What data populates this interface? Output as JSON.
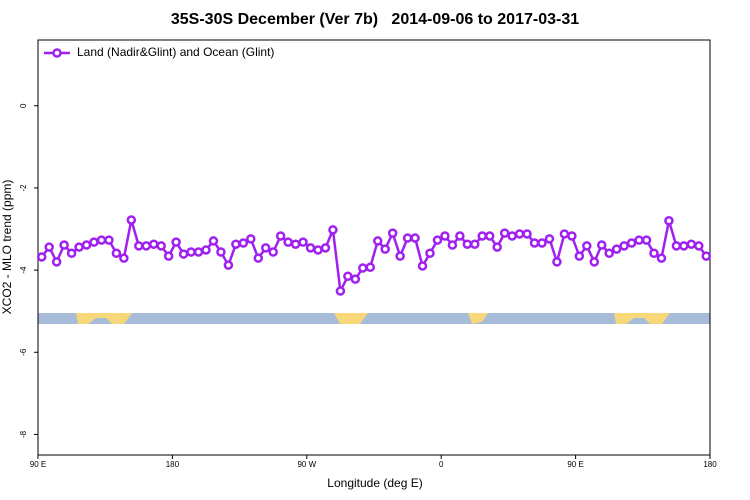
{
  "chart_data": {
    "type": "line",
    "title": "35S-30S December (Ver 7b)   2014-09-06 to 2017-03-31",
    "x_label": "Longitude (deg E)",
    "y_label": "XCO2 - MLO trend (ppm)",
    "legend": "topleft",
    "xlim": [
      90,
      540
    ],
    "xticks": [
      {
        "value": 90,
        "label": "90 E"
      },
      {
        "value": 180,
        "label": "180"
      },
      {
        "value": 270,
        "label": "90 W"
      },
      {
        "value": 360,
        "label": "0"
      },
      {
        "value": 450,
        "label": "90 E"
      },
      {
        "value": 540,
        "label": "180"
      }
    ],
    "ylim": [
      -8.5,
      1.6
    ],
    "yticks": [
      0,
      -2,
      -4,
      -6,
      -8
    ],
    "x": [
      92.5,
      97.5,
      102.5,
      107.5,
      112.5,
      117.5,
      122.5,
      127.5,
      132.5,
      137.5,
      142.5,
      147.5,
      152.5,
      157.5,
      162.5,
      167.5,
      172.5,
      177.5,
      182.5,
      187.5,
      192.5,
      197.5,
      202.5,
      207.5,
      212.5,
      217.5,
      222.5,
      227.5,
      232.5,
      237.5,
      242.5,
      247.5,
      252.5,
      257.5,
      262.5,
      267.5,
      272.5,
      277.5,
      282.5,
      287.5,
      292.5,
      297.5,
      302.5,
      307.5,
      312.5,
      317.5,
      322.5,
      327.5,
      332.5,
      337.5,
      342.5,
      347.5,
      352.5,
      357.5,
      362.5,
      367.5,
      372.5,
      377.5,
      382.5,
      387.5,
      392.5,
      397.5,
      402.5,
      407.5,
      412.5,
      417.5,
      422.5,
      427.5,
      432.5,
      437.5,
      442.5,
      447.5,
      452.5,
      457.5,
      462.5,
      467.5,
      472.5,
      477.5,
      482.5,
      487.5,
      492.5,
      497.5,
      502.5,
      507.5,
      512.5,
      517.5,
      522.5,
      527.5,
      532.5,
      537.5
    ],
    "series": [
      {
        "name": "Land (Nadir&Glint) and Ocean (Glint)",
        "color": "#a020f0",
        "values": [
          -3.68,
          -3.44,
          -3.8,
          -3.39,
          -3.59,
          -3.44,
          -3.39,
          -3.32,
          -3.27,
          -3.27,
          -3.59,
          -3.71,
          -2.78,
          -3.41,
          -3.41,
          -3.37,
          -3.41,
          -3.66,
          -3.32,
          -3.61,
          -3.56,
          -3.56,
          -3.51,
          -3.29,
          -3.56,
          -3.88,
          -3.37,
          -3.34,
          -3.24,
          -3.71,
          -3.46,
          -3.56,
          -3.17,
          -3.32,
          -3.37,
          -3.32,
          -3.46,
          -3.51,
          -3.46,
          -3.02,
          -4.51,
          -4.15,
          -4.22,
          -3.95,
          -3.93,
          -3.29,
          -3.49,
          -3.1,
          -3.66,
          -3.22,
          -3.22,
          -3.9,
          -3.59,
          -3.27,
          -3.17,
          -3.39,
          -3.17,
          -3.37,
          -3.37,
          -3.17,
          -3.17,
          -3.44,
          -3.1,
          -3.17,
          -3.12,
          -3.12,
          -3.34,
          -3.34,
          -3.24,
          -3.8,
          -3.12,
          -3.17,
          -3.66,
          -3.41,
          -3.8,
          -3.39,
          -3.59,
          -3.49,
          -3.41,
          -3.34,
          -3.27,
          -3.27,
          -3.59,
          -3.71,
          -2.8,
          -3.41,
          -3.41,
          -3.37,
          -3.41,
          -3.66
        ]
      }
    ]
  }
}
